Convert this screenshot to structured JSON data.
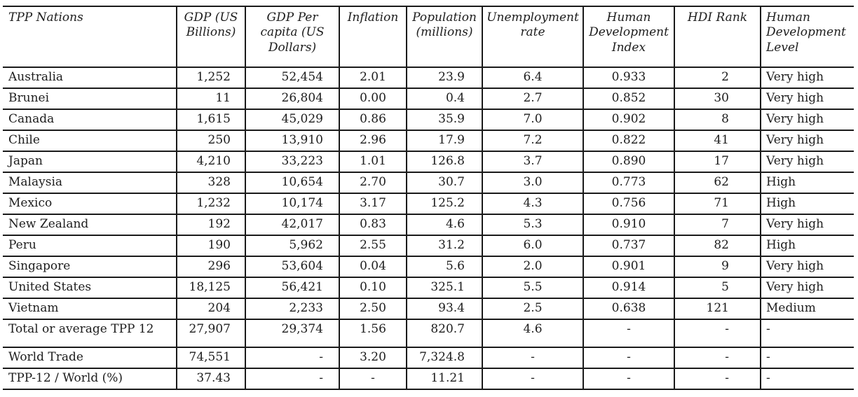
{
  "colors": {
    "border": "#1a1a1a",
    "text": "#1d1d1d",
    "background": "#ffffff"
  },
  "chart_data": {
    "type": "table",
    "columns": [
      "TPP Nations",
      "GDP (US Billions)",
      "GDP Per capita (US Dollars)",
      "Inflation",
      "Population (millions)",
      "Unemployment rate",
      "Human Development Index",
      "HDI Rank",
      "Human Development Level"
    ],
    "column_keys": [
      "nation",
      "gdp-us-billions",
      "gdp-per-capita",
      "inflation",
      "population-millions",
      "unemployment-rate",
      "human-development-index",
      "hdi-rank",
      "human-development-level"
    ],
    "rows": [
      [
        "Australia",
        "1,252",
        "52,454",
        "2.01",
        "23.9",
        "6.4",
        "0.933",
        "2",
        "Very high"
      ],
      [
        "Brunei",
        "11",
        "26,804",
        "0.00",
        "0.4",
        "2.7",
        "0.852",
        "30",
        "Very high"
      ],
      [
        "Canada",
        "1,615",
        "45,029",
        "0.86",
        "35.9",
        "7.0",
        "0.902",
        "8",
        "Very high"
      ],
      [
        "Chile",
        "250",
        "13,910",
        "2.96",
        "17.9",
        "7.2",
        "0.822",
        "41",
        "Very high"
      ],
      [
        "Japan",
        "4,210",
        "33,223",
        "1.01",
        "126.8",
        "3.7",
        "0.890",
        "17",
        "Very high"
      ],
      [
        "Malaysia",
        "328",
        "10,654",
        "2.70",
        "30.7",
        "3.0",
        "0.773",
        "62",
        "High"
      ],
      [
        "Mexico",
        "1,232",
        "10,174",
        "3.17",
        "125.2",
        "4.3",
        "0.756",
        "71",
        "High"
      ],
      [
        "New Zealand",
        "192",
        "42,017",
        "0.83",
        "4.6",
        "5.3",
        "0.910",
        "7",
        "Very high"
      ],
      [
        "Peru",
        "190",
        "5,962",
        "2.55",
        "31.2",
        "6.0",
        "0.737",
        "82",
        "High"
      ],
      [
        "Singapore",
        "296",
        "53,604",
        "0.04",
        "5.6",
        "2.0",
        "0.901",
        "9",
        "Very high"
      ],
      [
        "United States",
        "18,125",
        "56,421",
        "0.10",
        "325.1",
        "5.5",
        "0.914",
        "5",
        "Very high"
      ],
      [
        "Vietnam",
        "204",
        "2,233",
        "2.50",
        "93.4",
        "2.5",
        "0.638",
        "121",
        "Medium"
      ],
      [
        "Total or average TPP 12",
        "27,907",
        "29,374",
        "1.56",
        "820.7",
        "4.6",
        "-",
        "-",
        "-"
      ],
      [
        "World Trade",
        "74,551",
        "-",
        "3.20",
        "7,324.8",
        "-",
        "-",
        "-",
        "-"
      ],
      [
        "TPP-12 / World (%)",
        "37.43",
        "-",
        "-",
        "11.21",
        "-",
        "-",
        "-",
        "-"
      ]
    ]
  }
}
